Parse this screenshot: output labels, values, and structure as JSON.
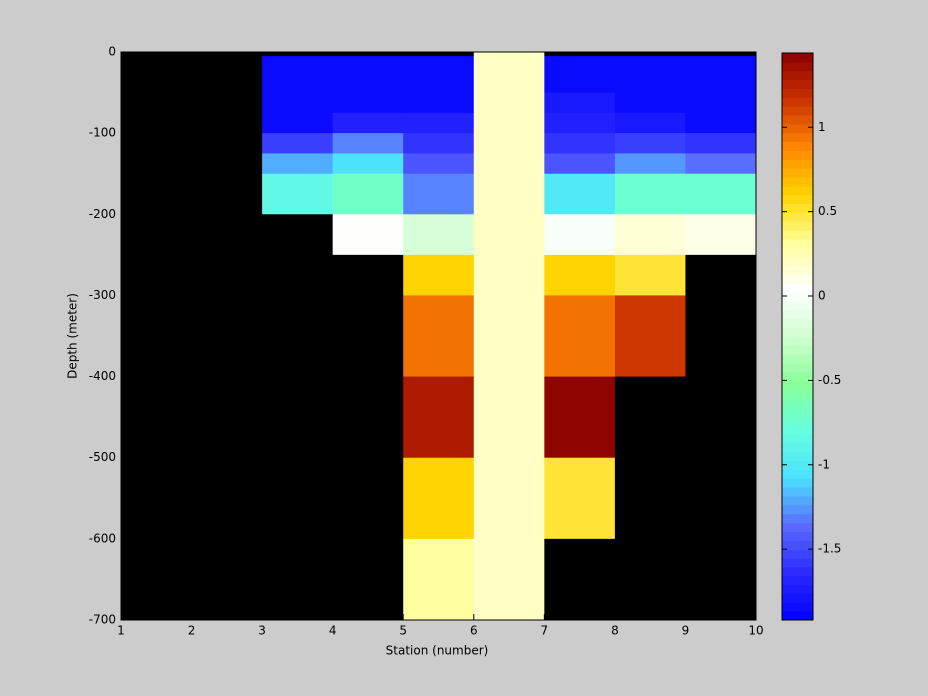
{
  "chart_data": {
    "type": "heatmap",
    "x_label": "Station (number)",
    "y_label": "Depth (meter)",
    "x": [
      1,
      2,
      3,
      4,
      5,
      6,
      7,
      8,
      9,
      10
    ],
    "y": [
      0,
      -5,
      -50,
      -75,
      -100,
      -125,
      -150,
      -200,
      -250,
      -300,
      -400,
      -500,
      -600,
      -700
    ],
    "z": [
      [
        null,
        null,
        null,
        null,
        null,
        0.2,
        null,
        null,
        null
      ],
      [
        null,
        null,
        -1.85,
        -1.85,
        -1.85,
        0.2,
        -1.85,
        -1.85,
        -1.85
      ],
      [
        null,
        null,
        -1.85,
        -1.85,
        -1.85,
        0.2,
        -1.75,
        -1.85,
        -1.85
      ],
      [
        null,
        null,
        -1.85,
        -1.7,
        -1.7,
        0.2,
        -1.7,
        -1.75,
        -1.85
      ],
      [
        null,
        null,
        -1.55,
        -1.3,
        -1.6,
        0.2,
        -1.6,
        -1.55,
        -1.6
      ],
      [
        null,
        null,
        -1.2,
        -1.05,
        -1.45,
        0.2,
        -1.45,
        -1.25,
        -1.35
      ],
      [
        null,
        null,
        -0.85,
        -0.7,
        -1.3,
        0.2,
        -1.0,
        -0.75,
        -0.75
      ],
      [
        null,
        null,
        null,
        0.02,
        -0.2,
        0.2,
        0.0,
        0.15,
        0.1
      ],
      [
        null,
        null,
        null,
        null,
        0.6,
        0.2,
        0.6,
        0.5,
        null
      ],
      [
        null,
        null,
        null,
        null,
        0.95,
        0.2,
        0.95,
        1.15,
        null
      ],
      [
        null,
        null,
        null,
        null,
        1.3,
        0.2,
        1.42,
        null,
        null
      ],
      [
        null,
        null,
        null,
        null,
        0.6,
        0.2,
        0.5,
        null,
        null
      ],
      [
        null,
        null,
        null,
        null,
        0.3,
        0.2,
        null,
        null,
        null
      ]
    ],
    "missing_color": "#000000",
    "colormap": [
      "#0000ff",
      "#2a2aff",
      "#5a6aff",
      "#4ae0ff",
      "#66ffe0",
      "#88ff99",
      "#d0ffd0",
      "#ffffff",
      "#ffff99",
      "#ffd400",
      "#ff8800",
      "#cc3300",
      "#8b0000"
    ],
    "clim": [
      -1.92,
      1.44
    ],
    "cticks": [
      -1.5,
      -1,
      -0.5,
      0,
      0.5,
      1
    ],
    "xlim": [
      1,
      10
    ],
    "xticks": [
      1,
      2,
      3,
      4,
      5,
      6,
      7,
      8,
      9,
      10
    ],
    "ylim": [
      -700,
      0
    ],
    "yticks": [
      0,
      -100,
      -200,
      -300,
      -400,
      -500,
      -600,
      -700
    ]
  }
}
